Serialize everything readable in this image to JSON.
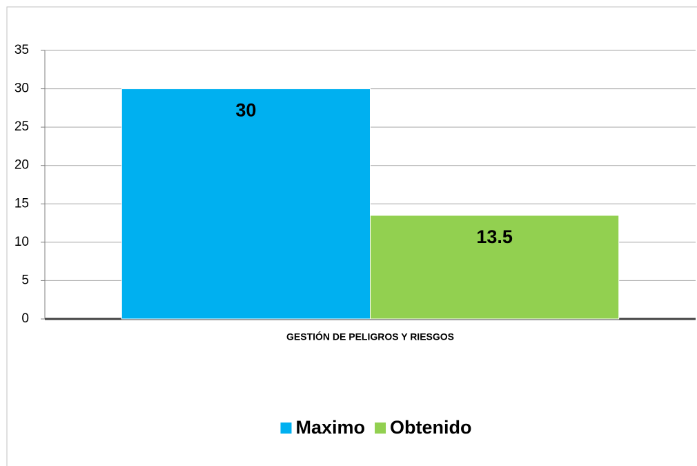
{
  "chart_data": {
    "type": "bar",
    "categories": [
      "GESTIÓN DE PELIGROS Y RIESGOS"
    ],
    "series": [
      {
        "name": "Maximo",
        "color": "#00b0f0",
        "values": [
          30
        ]
      },
      {
        "name": "Obtenido",
        "color": "#92d050",
        "values": [
          13.5
        ]
      }
    ],
    "ylim": [
      0,
      35
    ],
    "yticks": [
      0,
      5,
      10,
      15,
      20,
      25,
      30,
      35
    ],
    "grid": true,
    "legend": "bottom"
  }
}
